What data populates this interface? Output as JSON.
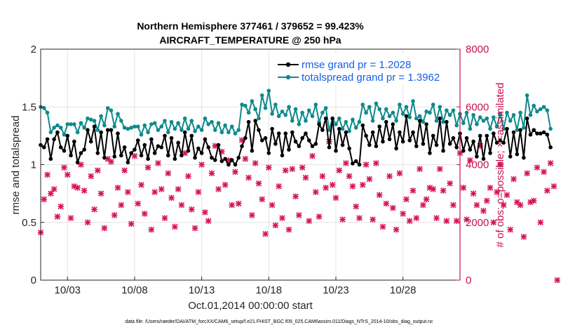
{
  "chart_data": {
    "type": "line",
    "title_line1": "Northern Hemisphere 377461 / 379652 = 99.423%",
    "title_line2": "AIRCRAFT_TEMPERATURE @ 250 hPa",
    "xlabel": "Oct.01,2014 00:00:00 start",
    "ylabel_left": "rmse and totalspread",
    "ylabel_right": "# of obs: o=possible; ×=assimilated",
    "ylim_left": [
      0,
      2
    ],
    "ylim_right": [
      0,
      8000
    ],
    "yticks_left": [
      "0",
      "0.5",
      "1",
      "1.5",
      "2"
    ],
    "yticks_left_values": [
      0,
      0.5,
      1,
      1.5,
      2
    ],
    "yticks_right": [
      "0",
      "2000",
      "4000",
      "6000",
      "8000"
    ],
    "yticks_right_values": [
      0,
      2000,
      4000,
      6000,
      8000
    ],
    "x_range_days": [
      1.0,
      32.25
    ],
    "xtick_labels": [
      "10/03",
      "10/08",
      "10/13",
      "10/18",
      "10/23",
      "10/28"
    ],
    "xtick_days": [
      3,
      8,
      13,
      18,
      23,
      28
    ],
    "x_start_day": 1.0,
    "x_step_days": 0.25,
    "footnote": "data file: /Users/raeder/DAI/ATM_forcXX/CAM6_setup/f.e21.FHIST_BGC.f09_025.CAM6assim.011/Diags_NTrS_2014-10/obs_diag_output.nc",
    "colors": {
      "rmse": "#000000",
      "totalspread": "#0e8a8c",
      "obs": "#d5145a",
      "legend_text": "#1560e6",
      "right_axis": "#c8134f",
      "grid": "#e3e3e3"
    },
    "series": [
      {
        "name": "rmse grand pr = 1.2028",
        "axis": "left",
        "values": [
          1.17,
          1.15,
          1.22,
          1.05,
          1.22,
          1.28,
          1.15,
          1.12,
          1.25,
          1.08,
          1.2,
          1.02,
          1.1,
          1.13,
          1.3,
          1.2,
          1.33,
          1.1,
          1.28,
          1.06,
          1.3,
          1.3,
          1.07,
          1.27,
          1.08,
          1.15,
          1.02,
          1.1,
          1.13,
          1.21,
          1.08,
          1.17,
          1.05,
          1.22,
          1.1,
          1.16,
          1.15,
          1.25,
          1.08,
          1.23,
          1.05,
          1.19,
          1.08,
          1.28,
          1.12,
          1.25,
          1.06,
          1.14,
          1.1,
          1.22,
          1.15,
          1.06,
          1.04,
          1.17,
          1.03,
          1.05,
          1.0,
          1.04,
          1.0,
          1.06,
          1.16,
          1.23,
          1.37,
          1.12,
          1.38,
          1.3,
          1.21,
          1.23,
          1.1,
          1.31,
          1.18,
          1.27,
          1.08,
          1.27,
          1.13,
          1.28,
          1.2,
          1.16,
          1.23,
          1.27,
          1.21,
          1.16,
          1.18,
          1.35,
          1.3,
          1.4,
          1.15,
          1.4,
          1.12,
          1.31,
          1.17,
          1.28,
          1.14,
          1.01,
          1.03,
          1.0,
          1.34,
          1.25,
          1.17,
          1.28,
          1.16,
          1.33,
          1.2,
          1.37,
          1.22,
          1.35,
          1.14,
          1.28,
          1.2,
          1.42,
          1.21,
          1.28,
          1.16,
          1.38,
          1.18,
          1.35,
          1.1,
          1.25,
          1.17,
          1.4,
          1.12,
          1.37,
          1.18,
          1.23,
          1.15,
          1.27,
          1.12,
          1.23,
          1.13,
          1.2,
          1.07,
          1.25,
          1.05,
          1.25,
          1.1,
          1.27,
          1.19,
          1.21,
          1.19,
          1.31,
          1.07,
          1.28,
          1.09,
          1.3,
          1.06,
          1.4,
          1.26,
          1.3,
          1.27,
          1.27,
          1.28,
          1.26,
          1.15
        ]
      },
      {
        "name": "totalspread grand pr = 1.3962",
        "axis": "left",
        "values": [
          1.5,
          1.49,
          1.45,
          1.28,
          1.32,
          1.34,
          1.32,
          1.26,
          1.35,
          1.35,
          1.35,
          1.28,
          1.36,
          1.32,
          1.4,
          1.39,
          1.38,
          1.3,
          1.42,
          1.34,
          1.49,
          1.47,
          1.33,
          1.44,
          1.38,
          1.32,
          1.31,
          1.32,
          1.33,
          1.33,
          1.26,
          1.34,
          1.28,
          1.35,
          1.36,
          1.3,
          1.33,
          1.38,
          1.28,
          1.37,
          1.31,
          1.36,
          1.3,
          1.4,
          1.31,
          1.38,
          1.29,
          1.33,
          1.3,
          1.4,
          1.35,
          1.37,
          1.3,
          1.36,
          1.28,
          1.34,
          1.28,
          1.33,
          1.27,
          1.3,
          1.52,
          1.51,
          1.45,
          1.55,
          1.48,
          1.4,
          1.6,
          1.49,
          1.64,
          1.44,
          1.52,
          1.42,
          1.46,
          1.43,
          1.5,
          1.38,
          1.48,
          1.35,
          1.45,
          1.38,
          1.47,
          1.42,
          1.52,
          1.37,
          1.45,
          1.49,
          1.3,
          1.4,
          1.35,
          1.4,
          1.31,
          1.37,
          1.29,
          1.39,
          1.32,
          1.37,
          1.52,
          1.45,
          1.5,
          1.38,
          1.53,
          1.48,
          1.4,
          1.48,
          1.42,
          1.45,
          1.38,
          1.52,
          1.44,
          1.5,
          1.41,
          1.55,
          1.4,
          1.42,
          1.37,
          1.46,
          1.45,
          1.52,
          1.38,
          1.5,
          1.37,
          1.47,
          1.43,
          1.47,
          1.34,
          1.44,
          1.36,
          1.45,
          1.31,
          1.43,
          1.35,
          1.41,
          1.38,
          1.4,
          1.31,
          1.41,
          1.33,
          1.44,
          1.31,
          1.45,
          1.38,
          1.43,
          1.3,
          1.45,
          1.32,
          1.6,
          1.43,
          1.51,
          1.46,
          1.48,
          1.5,
          1.47,
          1.31
        ]
      },
      {
        "name": "observations (× assimilated, o possible)",
        "axis": "right",
        "values": [
          1650,
          2800,
          3650,
          3000,
          3150,
          2200,
          2550,
          3900,
          3650,
          2150,
          3250,
          3200,
          4000,
          3100,
          2000,
          3600,
          2450,
          3800,
          3000,
          1800,
          4200,
          4100,
          2250,
          3200,
          2600,
          3800,
          3050,
          1950,
          4300,
          2650,
          3300,
          2300,
          3900,
          1750,
          3050,
          4050,
          3150,
          2150,
          3700,
          2850,
          1850,
          3150,
          2600,
          4400,
          3600,
          2450,
          1800,
          3050,
          4000,
          2350,
          2050,
          3700,
          4650,
          3150,
          4450,
          3300,
          4150,
          2600,
          3750,
          2650,
          4850,
          4200,
          3550,
          2250,
          4050,
          3350,
          2800,
          1600,
          3900,
          2600,
          1900,
          3250,
          2150,
          3800,
          1750,
          3850,
          2900,
          2250,
          3900,
          3550,
          2050,
          4300,
          3050,
          2200,
          3600,
          3200,
          4800,
          3300,
          2850,
          3800,
          2100,
          4050,
          3600,
          3250,
          2550,
          2150,
          3300,
          4000,
          3500,
          2100,
          4050,
          2950,
          1850,
          2650,
          3600,
          2500,
          1750,
          3700,
          2300,
          2800,
          2050,
          3100,
          2150,
          3850,
          2600,
          2800,
          3200,
          3150,
          2150,
          3850,
          3100,
          2050,
          3350,
          2600,
          2050,
          4400,
          3200,
          2100,
          4150,
          3000,
          2600,
          4650,
          2400,
          2750,
          3200,
          2000,
          3050,
          4000,
          2600,
          2950,
          1750,
          3500,
          2700,
          2600,
          1500,
          3700,
          2700,
          2750,
          3900,
          2000,
          3750,
          3100,
          4050,
          3250,
          0
        ]
      }
    ]
  }
}
